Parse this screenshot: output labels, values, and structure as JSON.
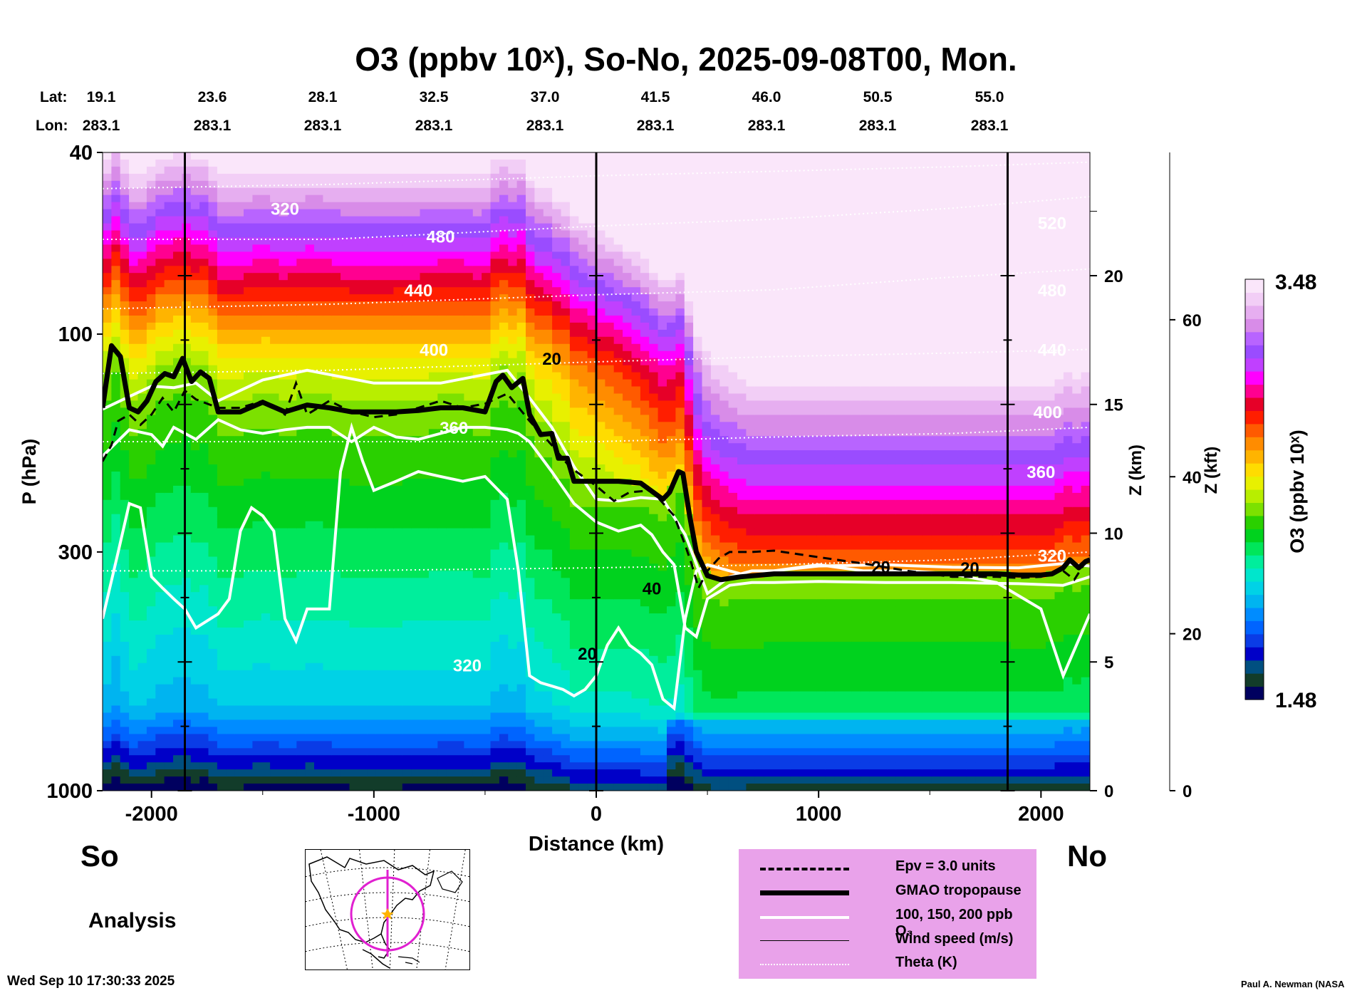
{
  "title": "O3 (ppbv 10ˣ), So-No, 2025-09-08T00, Mon.",
  "top_axis": {
    "lat_label": "Lat:",
    "lon_label": "Lon:",
    "lat": [
      "19.1",
      "23.6",
      "28.1",
      "32.5",
      "37.0",
      "41.5",
      "46.0",
      "50.5",
      "55.0"
    ],
    "lon": [
      "283.1",
      "283.1",
      "283.1",
      "283.1",
      "283.1",
      "283.1",
      "283.1",
      "283.1",
      "283.1"
    ]
  },
  "side_labels": {
    "south": "So",
    "north": "No"
  },
  "analysis_label": "Analysis",
  "timestamp": "Wed Sep 10 17:30:33 2025",
  "credit": "Paul A. Newman (NASA",
  "legend": [
    {
      "label": "Epv = 3.0 units",
      "style": "dashed"
    },
    {
      "label": "GMAO tropopause",
      "style": "thick"
    },
    {
      "label": "100, 150, 200 ppb O₃",
      "style": "white"
    },
    {
      "label": "Wind speed (m/s)",
      "style": "thin"
    },
    {
      "label": "Theta (K)",
      "style": "dotted"
    }
  ],
  "colorbar": {
    "max_label": "3.48",
    "min_label": "1.48",
    "title": "O3 (ppbv 10ˣ)",
    "colors": [
      "#00005f",
      "#123c2a",
      "#004f80",
      "#0000c8",
      "#0a3ce6",
      "#0064ff",
      "#008cff",
      "#00b4f0",
      "#00d2e6",
      "#00e6cc",
      "#00ee9c",
      "#00e65a",
      "#00d21e",
      "#2ad000",
      "#7ce100",
      "#b8ee00",
      "#e8f000",
      "#ffdc00",
      "#ffb400",
      "#ff8c00",
      "#ff5a00",
      "#ff1e00",
      "#e60028",
      "#ff0090",
      "#ff00ff",
      "#c040ff",
      "#9a4cff",
      "#b864ff",
      "#d88ce8",
      "#e6aef0",
      "#f2cef6",
      "#fae6fa"
    ]
  },
  "chart_data": {
    "type": "heatmap",
    "title": "O3 (ppbv 10ˣ), So-No, 2025-09-08T00, Mon.",
    "xlabel": "Distance (km)",
    "ylabel": "P (hPa)",
    "y2label": "Z (km)",
    "y3label": "Z (kft)",
    "xlim": [
      -2220,
      2220
    ],
    "ylim": [
      1000,
      40
    ],
    "y_scale": "log",
    "x_ticks": [
      -2000,
      -1000,
      0,
      1000,
      2000
    ],
    "y_ticks": [
      40,
      100,
      300,
      1000
    ],
    "z_km_ticks": [
      0,
      5,
      10,
      15,
      20
    ],
    "z_kft_ticks": [
      0,
      20,
      40,
      60
    ],
    "colorbar_range": [
      1.48,
      3.48
    ],
    "vertical_markers_km": [
      -1850,
      0,
      1850
    ],
    "gmao_tropopause": {
      "x": [
        -2220,
        -2180,
        -2140,
        -2100,
        -2060,
        -2020,
        -1980,
        -1940,
        -1900,
        -1860,
        -1820,
        -1780,
        -1740,
        -1700,
        -1650,
        -1600,
        -1500,
        -1400,
        -1300,
        -1200,
        -1100,
        -1000,
        -900,
        -800,
        -700,
        -600,
        -500,
        -450,
        -420,
        -380,
        -330,
        -300,
        -250,
        -200,
        -170,
        -130,
        -100,
        -60,
        -20,
        0,
        50,
        100,
        200,
        300,
        330,
        370,
        390,
        420,
        450,
        500,
        560,
        650,
        800,
        1000,
        1200,
        1400,
        1600,
        1800,
        1900,
        2000,
        2050,
        2100,
        2130,
        2170,
        2200,
        2220
      ],
      "p": [
        145,
        106,
        112,
        145,
        148,
        140,
        127,
        122,
        124,
        113,
        127,
        121,
        125,
        148,
        148,
        148,
        141,
        148,
        143,
        145,
        148,
        148,
        148,
        147,
        145,
        145,
        148,
        127,
        123,
        131,
        125,
        150,
        166,
        165,
        187,
        187,
        210,
        210,
        210,
        210,
        210,
        210,
        212,
        230,
        222,
        200,
        202,
        250,
        300,
        338,
        345,
        340,
        335,
        335,
        335,
        335,
        335,
        335,
        337,
        337,
        335,
        325,
        312,
        325,
        315,
        312
      ]
    },
    "epv_3": {
      "x": [
        -2220,
        -2180,
        -2150,
        -2100,
        -2050,
        -2000,
        -1950,
        -1900,
        -1850,
        -1800,
        -1700,
        -1600,
        -1500,
        -1400,
        -1350,
        -1300,
        -1200,
        -1100,
        -1000,
        -900,
        -800,
        -700,
        -600,
        -500,
        -400,
        -300,
        -200,
        -120,
        -60,
        0,
        80,
        150,
        250,
        350,
        400,
        430,
        460,
        500,
        550,
        600,
        700,
        800,
        1000,
        1200,
        1400,
        1600,
        1800,
        1900,
        2000,
        2100,
        2150,
        2220
      ],
      "p": [
        190,
        175,
        155,
        150,
        158,
        150,
        138,
        148,
        133,
        139,
        145,
        145,
        140,
        150,
        128,
        150,
        140,
        148,
        152,
        150,
        145,
        140,
        145,
        142,
        135,
        155,
        175,
        195,
        205,
        215,
        232,
        222,
        220,
        250,
        290,
        320,
        360,
        330,
        310,
        300,
        300,
        298,
        308,
        318,
        330,
        340,
        340,
        342,
        340,
        330,
        345,
        305
      ]
    },
    "ozone_contours": [
      {
        "level_ppb": 200,
        "x": [
          -2220,
          -2100,
          -2000,
          -1900,
          -1800,
          -1700,
          -1500,
          -1300,
          -1000,
          -700,
          -400,
          -300,
          -200,
          -100,
          0,
          100,
          200,
          300,
          400,
          500,
          600,
          700,
          800,
          1000,
          1300,
          1600,
          1900,
          2100,
          2220
        ],
        "p": [
          146,
          137,
          130,
          131,
          128,
          140,
          126,
          120,
          128,
          128,
          120,
          138,
          160,
          195,
          230,
          232,
          228,
          230,
          275,
          370,
          340,
          330,
          330,
          322,
          320,
          324,
          325,
          318,
          322
        ]
      },
      {
        "level_ppb": 150,
        "x": [
          -2220,
          -2100,
          -2000,
          -1950,
          -1900,
          -1800,
          -1700,
          -1600,
          -1500,
          -1400,
          -1300,
          -1200,
          -1100,
          -1000,
          -900,
          -800,
          -700,
          -600,
          -500,
          -400,
          -350,
          -300,
          -200,
          -100,
          0,
          100,
          200,
          250,
          300,
          350,
          400,
          450,
          500,
          600,
          700,
          800,
          1000,
          1300,
          1600,
          1900,
          2100,
          2220
        ],
        "p": [
          185,
          162,
          166,
          176,
          160,
          170,
          154,
          162,
          165,
          162,
          160,
          160,
          172,
          160,
          168,
          170,
          165,
          160,
          160,
          162,
          165,
          172,
          200,
          235,
          258,
          270,
          262,
          275,
          300,
          320,
          440,
          460,
          380,
          355,
          350,
          350,
          348,
          350,
          350,
          352,
          355,
          340
        ]
      },
      {
        "level_ppb": 100,
        "x": [
          -2220,
          -2150,
          -2100,
          -2050,
          -2000,
          -1950,
          -1900,
          -1850,
          -1800,
          -1700,
          -1650,
          -1600,
          -1550,
          -1500,
          -1450,
          -1400,
          -1350,
          -1300,
          -1200,
          -1150,
          -1100,
          -1050,
          -1000,
          -900,
          -800,
          -700,
          -600,
          -500,
          -400,
          -350,
          -300,
          -250,
          -200,
          -150,
          -100,
          -50,
          0,
          50,
          100,
          150,
          200,
          250,
          300,
          350,
          400,
          450,
          500,
          600,
          700,
          800,
          1000,
          1200,
          1400,
          1600,
          1800,
          2000,
          2100,
          2220
        ],
        "p": [
          420,
          300,
          235,
          240,
          340,
          360,
          380,
          400,
          440,
          410,
          380,
          270,
          240,
          250,
          270,
          420,
          470,
          400,
          400,
          200,
          160,
          190,
          220,
          210,
          200,
          205,
          210,
          205,
          230,
          330,
          560,
          580,
          590,
          600,
          620,
          600,
          560,
          480,
          440,
          480,
          500,
          530,
          630,
          660,
          420,
          330,
          320,
          330,
          340,
          330,
          320,
          330,
          330,
          335,
          350,
          400,
          560,
          410
        ]
      }
    ],
    "theta_levels": [
      {
        "theta": 320,
        "p": [
          330,
          330,
          325,
          320,
          312,
          300
        ]
      },
      {
        "theta": 360,
        "p": [
          172,
          172,
          172,
          168,
          165,
          160
        ]
      },
      {
        "theta": 400,
        "p": [
          122,
          120,
          115,
          112,
          110,
          108
        ]
      },
      {
        "theta": 440,
        "p": [
          88,
          86,
          82,
          80,
          75,
          72
        ]
      },
      {
        "theta": 480,
        "p": [
          62,
          62,
          58,
          56,
          53,
          50
        ]
      },
      {
        "theta": 520,
        "p": [
          48,
          47,
          45,
          44,
          43,
          42
        ]
      }
    ],
    "theta_x": [
      -2220,
      -1200,
      0,
      800,
      1600,
      2220
    ],
    "theta_labels": [
      {
        "text": "320",
        "x": -1400,
        "p": 53
      },
      {
        "text": "480",
        "x": -700,
        "p": 61
      },
      {
        "text": "440",
        "x": -800,
        "p": 80
      },
      {
        "text": "400",
        "x": -730,
        "p": 108
      },
      {
        "text": "360",
        "x": -640,
        "p": 160
      },
      {
        "text": "320",
        "x": -580,
        "p": 530
      },
      {
        "text": "520",
        "x": 2050,
        "p": 57
      },
      {
        "text": "480",
        "x": 2050,
        "p": 80
      },
      {
        "text": "440",
        "x": 2050,
        "p": 108
      },
      {
        "text": "400",
        "x": 2030,
        "p": 148
      },
      {
        "text": "360",
        "x": 2000,
        "p": 200
      },
      {
        "text": "320",
        "x": 2050,
        "p": 305
      }
    ],
    "wind_labels": [
      {
        "text": "20",
        "x": -200,
        "p": 113
      },
      {
        "text": "40",
        "x": 250,
        "p": 360
      },
      {
        "text": "20",
        "x": -40,
        "p": 500
      },
      {
        "text": "20",
        "x": 1280,
        "p": 323
      },
      {
        "text": "20",
        "x": 1680,
        "p": 325
      }
    ]
  }
}
